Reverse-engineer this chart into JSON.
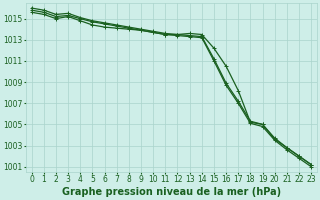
{
  "background_color": "#ceeee8",
  "plot_bg_color": "#ceeee8",
  "grid_color": "#aad4cc",
  "line_color": "#1a6020",
  "xlabel": "Graphe pression niveau de la mer (hPa)",
  "ylim": [
    1000.5,
    1016.5
  ],
  "xlim": [
    -0.5,
    23.5
  ],
  "yticks": [
    1001,
    1003,
    1005,
    1007,
    1009,
    1011,
    1013,
    1015
  ],
  "xticks": [
    0,
    1,
    2,
    3,
    4,
    5,
    6,
    7,
    8,
    9,
    10,
    11,
    12,
    13,
    14,
    15,
    16,
    17,
    18,
    19,
    20,
    21,
    22,
    23
  ],
  "series1": [
    1015.6,
    1015.4,
    1015.0,
    1015.2,
    1014.8,
    1014.4,
    1014.2,
    1014.1,
    1014.0,
    1013.9,
    1013.7,
    1013.5,
    1013.5,
    1013.6,
    1013.5,
    1012.2,
    1010.5,
    1008.2,
    1005.2,
    1005.0,
    1003.6,
    1002.8,
    1002.0,
    1001.2
  ],
  "series2": [
    1015.8,
    1015.6,
    1015.2,
    1015.3,
    1015.0,
    1014.7,
    1014.5,
    1014.3,
    1014.1,
    1013.9,
    1013.7,
    1013.5,
    1013.4,
    1013.3,
    1013.2,
    1011.0,
    1008.7,
    1007.0,
    1005.1,
    1004.8,
    1003.5,
    1002.6,
    1001.8,
    1001.0
  ],
  "series3": [
    1016.0,
    1015.8,
    1015.4,
    1015.5,
    1015.1,
    1014.8,
    1014.6,
    1014.4,
    1014.2,
    1014.0,
    1013.8,
    1013.6,
    1013.5,
    1013.4,
    1013.3,
    1011.2,
    1008.9,
    1007.2,
    1005.3,
    1005.0,
    1003.7,
    1002.8,
    1002.0,
    1001.2
  ],
  "marker": "+",
  "markersize": 3,
  "linewidth": 0.9,
  "xlabel_fontsize": 7,
  "tick_fontsize": 5.5,
  "xlabel_color": "#1a6020",
  "tick_color": "#1a6020",
  "spine_color": "#aad4cc"
}
